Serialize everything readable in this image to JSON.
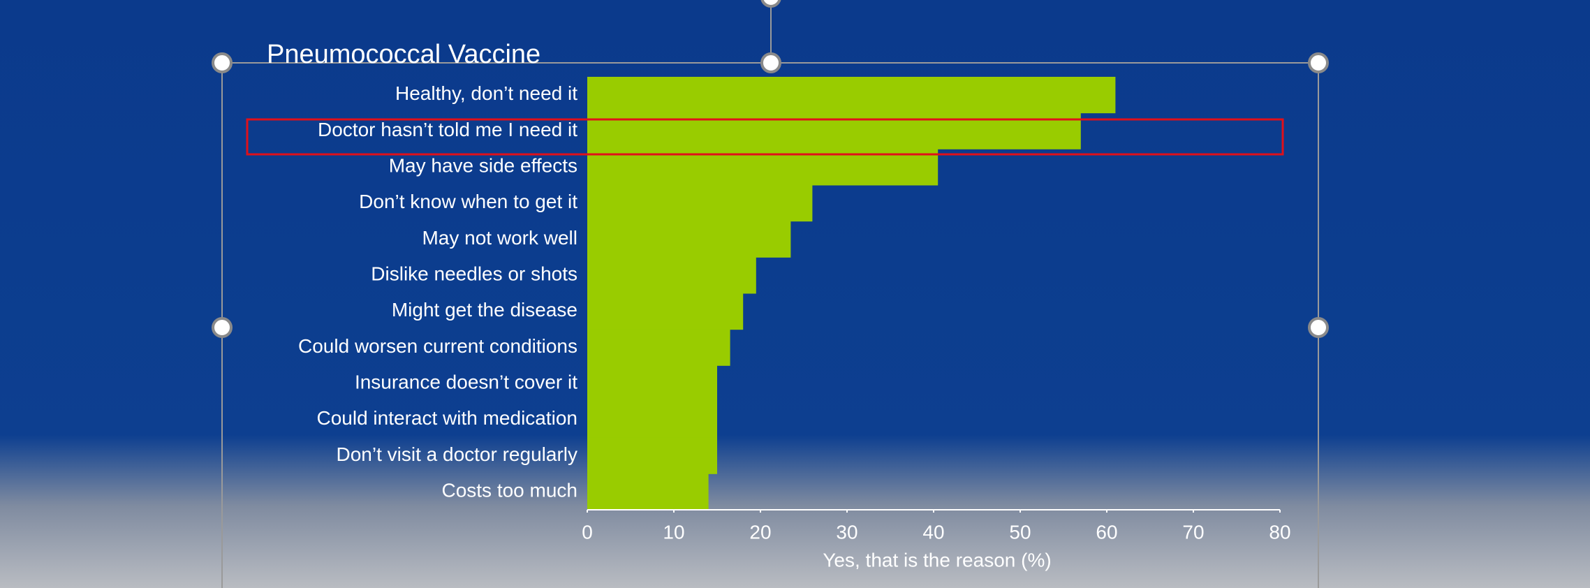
{
  "chart_data": {
    "type": "bar",
    "orientation": "horizontal",
    "title": "Pneumococcal Vaccine",
    "x_label": "Yes, that is the reason (%)",
    "categories": [
      "Healthy, don’t need it",
      "Doctor hasn’t told me I need it",
      "May have side effects",
      "Don’t know when to get it",
      "May not work well",
      "Dislike needles or shots",
      "Might get the disease ",
      "Could worsen current conditions",
      "Insurance doesn’t cover it",
      "Could interact with medication",
      "Don’t visit a doctor regularly",
      "Costs too much"
    ],
    "values": [
      61,
      57,
      40.5,
      26,
      23.5,
      19.5,
      18,
      16.5,
      15,
      15,
      15,
      14
    ],
    "color": "#99cc00",
    "xlim": [
      0,
      80
    ],
    "xticks": [
      0,
      10,
      20,
      30,
      40,
      50,
      60,
      70,
      80
    ],
    "grid": false
  }
}
